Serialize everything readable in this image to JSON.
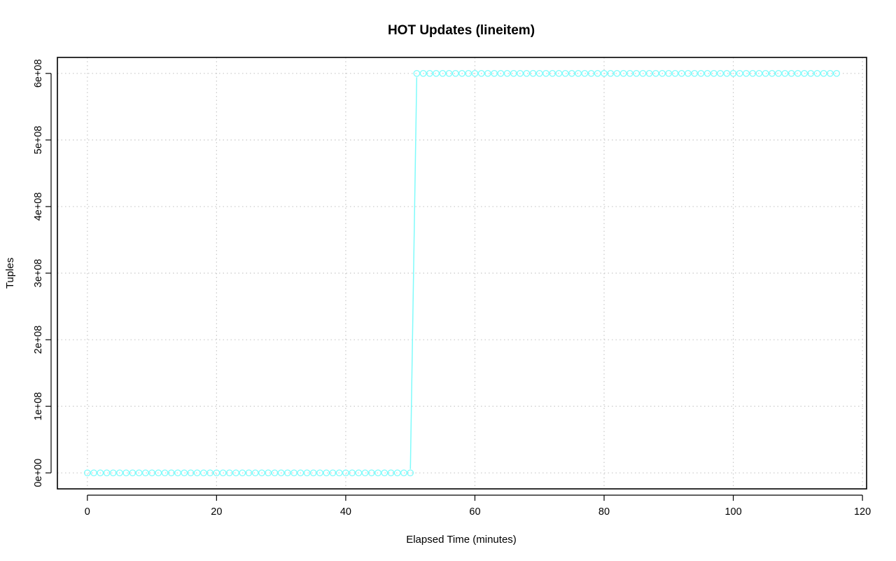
{
  "chart_data": {
    "type": "line",
    "title": "HOT Updates (lineitem)",
    "xlabel": "Elapsed Time (minutes)",
    "ylabel": "Tuples",
    "xlim": [
      -4.64,
      120.64
    ],
    "ylim": [
      -24000000,
      624000000
    ],
    "x_ticks": [
      0,
      20,
      40,
      60,
      80,
      100,
      120
    ],
    "x_tick_labels": [
      "0",
      "20",
      "40",
      "60",
      "80",
      "100",
      "120"
    ],
    "y_ticks": [
      0,
      100000000,
      200000000,
      300000000,
      400000000,
      500000000,
      600000000
    ],
    "y_tick_labels": [
      "0e+00",
      "1e+08",
      "2e+08",
      "3e+08",
      "4e+08",
      "5e+08",
      "6e+08"
    ],
    "grid": true,
    "series": [
      {
        "color": "#7ffbfb",
        "marker": "open-circle",
        "segments": [
          {
            "x_start": 0,
            "x_end": 50,
            "step": 1,
            "y": 0
          },
          {
            "x_start": 51,
            "x_end": 116,
            "step": 1,
            "y": 600000000
          }
        ]
      }
    ]
  }
}
